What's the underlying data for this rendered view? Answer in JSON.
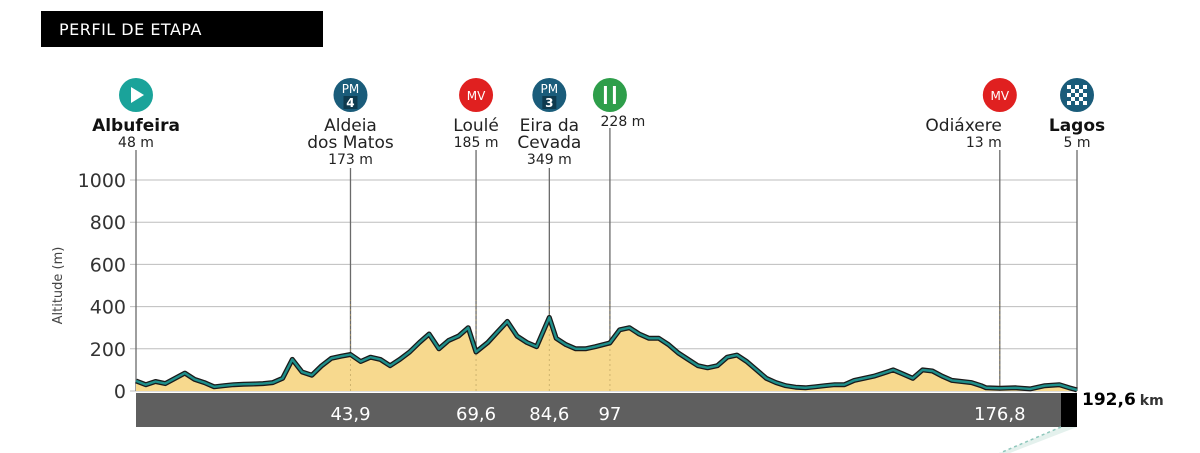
{
  "header": {
    "title": "PERFIL DE ETAPA"
  },
  "colors": {
    "profile_fill": "#f7d98e",
    "profile_stroke": "#1f8f8a",
    "profile_shadow": "#1a1a1a",
    "km_bar": "#5f5f5f",
    "finish_block": "#000000",
    "mountain_badge": "#1a5c7a",
    "sprint_badge": "#e02020",
    "feed_badge": "#2e9e4a",
    "start_badge": "#1aa39a",
    "finish_badge": "#1a5c7a"
  },
  "chart_data": {
    "type": "area",
    "ylabel": "Altitude (m)",
    "ylim": [
      0,
      1000
    ],
    "yticks": [
      "0",
      "200",
      "400",
      "600",
      "800",
      "1000"
    ],
    "xlim": [
      0,
      192.6
    ],
    "total_distance": "192,6",
    "distance_unit": "km",
    "profile": {
      "x": [
        0,
        2,
        4,
        6,
        8,
        10,
        12,
        14,
        16,
        18,
        20,
        22,
        24,
        26,
        28,
        30,
        32,
        34,
        36,
        38,
        40,
        42,
        43.9,
        46,
        48,
        50,
        52,
        54,
        56,
        58,
        60,
        62,
        64,
        66,
        68,
        69.6,
        72,
        74,
        76,
        78,
        80,
        82,
        84.6,
        86,
        88,
        90,
        92,
        94,
        97,
        99,
        101,
        103,
        105,
        107,
        109,
        111,
        113,
        115,
        117,
        119,
        121,
        123,
        125,
        127,
        129,
        131,
        133,
        135,
        137,
        139,
        141,
        143,
        145,
        147,
        149,
        151,
        153,
        155,
        157,
        159,
        161,
        163,
        165,
        167,
        169,
        171,
        173,
        174,
        176.8,
        180,
        183,
        186,
        189,
        191,
        192.6
      ],
      "y": [
        48,
        30,
        45,
        35,
        60,
        85,
        55,
        40,
        20,
        25,
        30,
        32,
        33,
        35,
        40,
        60,
        150,
        90,
        75,
        120,
        155,
        165,
        173,
        140,
        160,
        150,
        120,
        150,
        185,
        230,
        270,
        200,
        240,
        260,
        300,
        185,
        230,
        280,
        330,
        260,
        230,
        210,
        349,
        250,
        220,
        200,
        200,
        210,
        228,
        290,
        300,
        270,
        250,
        250,
        220,
        180,
        150,
        120,
        110,
        120,
        160,
        170,
        140,
        100,
        60,
        40,
        25,
        18,
        15,
        20,
        25,
        30,
        30,
        50,
        60,
        70,
        85,
        100,
        80,
        60,
        100,
        95,
        70,
        50,
        45,
        40,
        25,
        15,
        13,
        15,
        10,
        25,
        30,
        15,
        5
      ]
    },
    "markers": [
      {
        "km": 0,
        "km_label": "",
        "type": "start",
        "badge": "",
        "badge_num": "",
        "name_lines": [
          "Albufeira"
        ],
        "bold": true,
        "altitude": "48 m"
      },
      {
        "km": 43.9,
        "km_label": "43,9",
        "type": "mountain",
        "badge": "PM",
        "badge_num": "4",
        "name_lines": [
          "Aldeia",
          "dos Matos"
        ],
        "bold": false,
        "altitude": "173 m"
      },
      {
        "km": 69.6,
        "km_label": "69,6",
        "type": "sprint",
        "badge": "MV",
        "badge_num": "",
        "name_lines": [
          "Loulé"
        ],
        "bold": false,
        "altitude": "185 m"
      },
      {
        "km": 84.6,
        "km_label": "84,6",
        "type": "mountain",
        "badge": "PM",
        "badge_num": "3",
        "name_lines": [
          "Eira da",
          "Cevada"
        ],
        "bold": false,
        "altitude": "349 m"
      },
      {
        "km": 97,
        "km_label": "97",
        "type": "feed",
        "badge": "",
        "badge_num": "",
        "name_lines": [],
        "bold": false,
        "altitude": "228 m"
      },
      {
        "km": 176.8,
        "km_label": "176,8",
        "type": "sprint",
        "badge": "MV",
        "badge_num": "",
        "name_lines": [
          "Odiáxere"
        ],
        "bold": false,
        "altitude": "13 m"
      },
      {
        "km": 192.6,
        "km_label": "",
        "type": "finish",
        "badge": "",
        "badge_num": "",
        "name_lines": [
          "Lagos"
        ],
        "bold": true,
        "altitude": "5 m"
      }
    ]
  }
}
